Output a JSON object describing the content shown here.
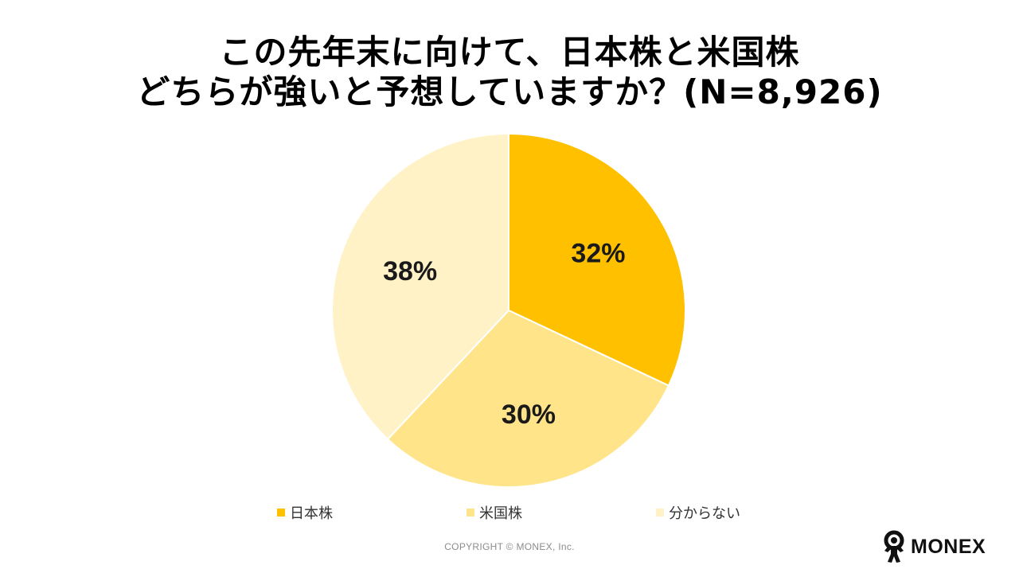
{
  "title": {
    "line1": "この先年末に向けて、日本株と米国株",
    "line2": "どちらが強いと予想していますか？(N=8,926)"
  },
  "chart_data": {
    "type": "pie",
    "title": "この先年末に向けて、日本株と米国株どちらが強いと予想していますか？(N=8,926)",
    "categories": [
      "日本株",
      "米国株",
      "分からない"
    ],
    "values": [
      32,
      30,
      38
    ],
    "unit": "%",
    "labels": [
      "32%",
      "30%",
      "38%"
    ],
    "colors": [
      "#FFC000",
      "#FFE48A",
      "#FFF2C7"
    ],
    "start_angle": "12 o'clock, clockwise",
    "legend_placement": "bottom"
  },
  "legend": [
    {
      "label": "日本株",
      "color": "#FFC000"
    },
    {
      "label": "米国株",
      "color": "#FFE48A"
    },
    {
      "label": "分からない",
      "color": "#FFF2C7"
    }
  ],
  "footer": {
    "copyright": "COPYRIGHT © MONEX, Inc."
  },
  "logo": {
    "text": "MONEX",
    "icon": "monex-person-icon"
  }
}
